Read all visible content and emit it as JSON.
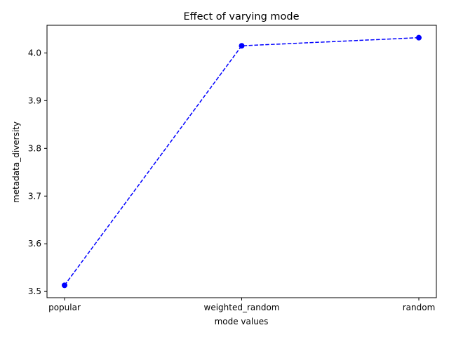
{
  "chart_data": {
    "type": "line",
    "title": "Effect of varying mode",
    "xlabel": "mode values",
    "ylabel": "metadata_diversity",
    "categories": [
      "popular",
      "weighted_random",
      "random"
    ],
    "series": [
      {
        "values": [
          3.513,
          4.015,
          4.032
        ],
        "color": "#0000ff",
        "line_style": "dashed",
        "marker": "circle"
      }
    ],
    "ylim": [
      3.487,
      4.058
    ],
    "yticks": [
      "3.5",
      "3.6",
      "3.7",
      "3.8",
      "3.9",
      "4.0"
    ],
    "grid": false,
    "legend": "none"
  }
}
